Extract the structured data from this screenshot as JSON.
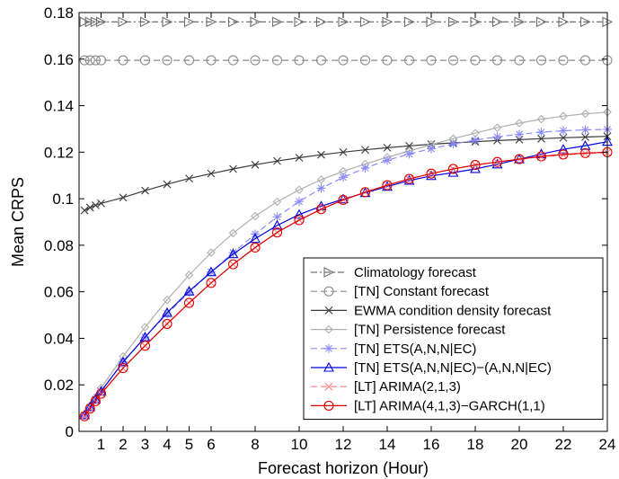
{
  "chart_data": {
    "type": "line",
    "title": "",
    "xlabel": "Forecast horizon (Hour)",
    "ylabel": "Mean CRPS",
    "xlim": [
      0,
      24
    ],
    "ylim": [
      0,
      0.18
    ],
    "xticks": [
      1,
      2,
      3,
      4,
      5,
      6,
      8,
      10,
      12,
      14,
      16,
      18,
      20,
      22,
      24
    ],
    "xtick_labels": [
      "1",
      "2",
      "3",
      "4",
      "5",
      "6",
      "8",
      "10",
      "12",
      "14",
      "16",
      "18",
      "20",
      "22",
      "24"
    ],
    "yticks": [
      0,
      0.02,
      0.04,
      0.06,
      0.08,
      0.1,
      0.12,
      0.14,
      0.16,
      0.18
    ],
    "ytick_labels": [
      "0",
      "0.02",
      "0.04",
      "0.06",
      "0.08",
      "0.1",
      "0.12",
      "0.14",
      "0.16",
      "0.18"
    ],
    "grid": false,
    "legend_position": "bottom-right",
    "x": [
      0.25,
      0.5,
      0.75,
      1,
      2,
      3,
      4,
      5,
      6,
      7,
      8,
      9,
      10,
      11,
      12,
      13,
      14,
      15,
      16,
      17,
      18,
      19,
      20,
      21,
      22,
      23,
      24
    ],
    "series": [
      {
        "name": "Climatology forecast",
        "color": "#707070",
        "dash": "dashdot",
        "marker": "triangle-right",
        "values": [
          0.176,
          0.176,
          0.176,
          0.176,
          0.176,
          0.176,
          0.176,
          0.176,
          0.176,
          0.176,
          0.176,
          0.176,
          0.176,
          0.176,
          0.176,
          0.176,
          0.176,
          0.176,
          0.176,
          0.176,
          0.176,
          0.176,
          0.176,
          0.176,
          0.176,
          0.176,
          0.176
        ]
      },
      {
        "name": "[TN] Constant forecast",
        "color": "#8c8c8c",
        "dash": "dashed",
        "marker": "circle",
        "values": [
          0.1595,
          0.1595,
          0.1595,
          0.1595,
          0.1595,
          0.1595,
          0.1595,
          0.1595,
          0.1595,
          0.1595,
          0.1595,
          0.1595,
          0.1595,
          0.1595,
          0.1595,
          0.1595,
          0.1595,
          0.1595,
          0.1595,
          0.1595,
          0.1595,
          0.1595,
          0.1595,
          0.1595,
          0.1595,
          0.1595,
          0.1595
        ]
      },
      {
        "name": "EWMA condition density forecast",
        "color": "#3a3a3a",
        "dash": "solid",
        "marker": "x",
        "values": [
          0.095,
          0.0962,
          0.0972,
          0.098,
          0.1005,
          0.1035,
          0.1062,
          0.1087,
          0.1108,
          0.1128,
          0.1146,
          0.1162,
          0.1176,
          0.1189,
          0.12,
          0.121,
          0.1219,
          0.1227,
          0.1234,
          0.124,
          0.1245,
          0.125,
          0.1254,
          0.1258,
          0.1262,
          0.1265,
          0.1268
        ]
      },
      {
        "name": "[TN] Persistence forecast",
        "color": "#b0b0b0",
        "dash": "solid",
        "marker": "diamond",
        "values": [
          0.007,
          0.011,
          0.0148,
          0.0186,
          0.0322,
          0.0448,
          0.0565,
          0.0672,
          0.0768,
          0.0852,
          0.0925,
          0.0987,
          0.1038,
          0.1082,
          0.1118,
          0.1149,
          0.1178,
          0.1205,
          0.1232,
          0.1258,
          0.1282,
          0.1305,
          0.1325,
          0.1342,
          0.1355,
          0.1365,
          0.1372
        ]
      },
      {
        "name": "[TN] ETS(A,N,N|EC)",
        "color": "#8a8aff",
        "dash": "dashed",
        "marker": "asterisk",
        "values": [
          0.007,
          0.0105,
          0.0138,
          0.0172,
          0.0298,
          0.0405,
          0.0505,
          0.0598,
          0.0685,
          0.0768,
          0.0848,
          0.0922,
          0.0988,
          0.1045,
          0.1092,
          0.1132,
          0.1165,
          0.1192,
          0.1215,
          0.1235,
          0.1252,
          0.1266,
          0.1277,
          0.1286,
          0.1292,
          0.1296,
          0.1298
        ]
      },
      {
        "name": "[TN] ETS(A,N,N|EC)−(A,N,N|EC)",
        "color": "#0000e0",
        "dash": "solid",
        "marker": "triangle-up",
        "values": [
          0.007,
          0.0105,
          0.0138,
          0.0172,
          0.0298,
          0.0405,
          0.051,
          0.0602,
          0.0685,
          0.0762,
          0.0828,
          0.0885,
          0.0932,
          0.0968,
          0.0998,
          0.1025,
          0.1052,
          0.1078,
          0.1098,
          0.1112,
          0.1128,
          0.1148,
          0.117,
          0.1192,
          0.1212,
          0.1228,
          0.1245
        ]
      },
      {
        "name": "[LT] ARIMA(2,1,3)",
        "color": "#ff8080",
        "dash": "dashed",
        "marker": "x",
        "values": [
          0.0065,
          0.0098,
          0.013,
          0.0162,
          0.0272,
          0.0368,
          0.0462,
          0.0552,
          0.0638,
          0.0718,
          0.079,
          0.0855,
          0.0908,
          0.0955,
          0.0995,
          0.1028,
          0.1058,
          0.1085,
          0.1108,
          0.1128,
          0.1145,
          0.1158,
          0.117,
          0.118,
          0.1188,
          0.1194,
          0.1198
        ]
      },
      {
        "name": "[LT] ARIMA(4,1,3)−GARCH(1,1)",
        "color": "#e00000",
        "dash": "solid",
        "marker": "circle",
        "values": [
          0.0065,
          0.0098,
          0.013,
          0.0162,
          0.0272,
          0.0368,
          0.0462,
          0.0552,
          0.0638,
          0.0718,
          0.079,
          0.0855,
          0.0908,
          0.0955,
          0.0995,
          0.1028,
          0.1058,
          0.1085,
          0.1108,
          0.1128,
          0.1145,
          0.1158,
          0.117,
          0.1182,
          0.119,
          0.1196,
          0.12
        ]
      }
    ]
  }
}
